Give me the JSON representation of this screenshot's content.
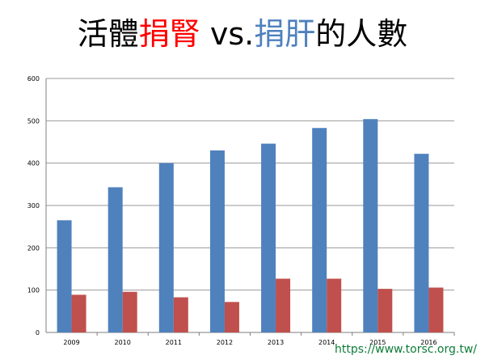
{
  "title": {
    "parts": [
      {
        "text": "活體",
        "color": "#000000"
      },
      {
        "text": "捐腎",
        "color": "#ff0000"
      },
      {
        "text": " vs.",
        "color": "#000000"
      },
      {
        "text": "捐肝",
        "color": "#4f81bd"
      },
      {
        "text": "的人數",
        "color": "#000000"
      }
    ]
  },
  "source_link": {
    "text": "https://www.torsc.org.tw/",
    "color": "#0e7c3a"
  },
  "colors": {
    "liver": "#4f81bd",
    "kidney": "#c0504d",
    "grid": "#9a9a9a",
    "axis": "#7f7f7f"
  },
  "chart_data": {
    "type": "bar",
    "categories": [
      "2009",
      "2010",
      "2011",
      "2012",
      "2013",
      "2014",
      "2015",
      "2016"
    ],
    "series": [
      {
        "values": [
          265,
          343,
          400,
          430,
          446,
          483,
          504,
          422
        ],
        "color": "#4f81bd"
      },
      {
        "values": [
          89,
          96,
          83,
          72,
          127,
          127,
          103,
          106
        ],
        "color": "#c0504d"
      }
    ],
    "yticks": [
      "0",
      "100",
      "200",
      "300",
      "400",
      "500",
      "600"
    ],
    "ylim": [
      0,
      600
    ],
    "grid": true,
    "legend": "none",
    "xlabel": "",
    "ylabel": ""
  }
}
